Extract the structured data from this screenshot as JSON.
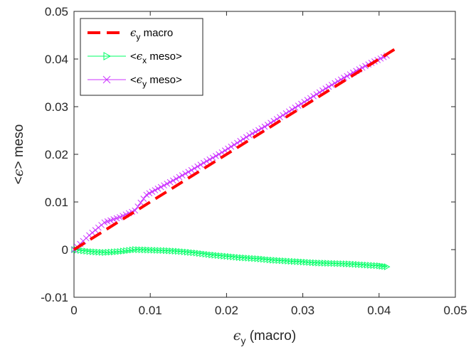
{
  "chart_data": {
    "type": "line",
    "xlabel": {
      "symbol": "ϵ",
      "sub": "y",
      "rest": " (macro)"
    },
    "ylabel": {
      "pre": "<",
      "symbol": "ϵ",
      "post": "> meso"
    },
    "xlim": [
      0,
      0.05
    ],
    "ylim": [
      -0.01,
      0.05
    ],
    "xticks": [
      "0",
      "0.01",
      "0.02",
      "0.03",
      "0.04",
      "0.05"
    ],
    "yticks": [
      "-0.01",
      "0",
      "0.01",
      "0.02",
      "0.03",
      "0.04",
      "0.05"
    ],
    "grid": false,
    "legend_position": "top-left",
    "series": [
      {
        "legend": {
          "pre": "",
          "symbol": "ϵ",
          "sub": "y",
          "rest": " macro"
        },
        "color": "#ff0000",
        "style": "dashed",
        "marker": "none",
        "x": [
          0,
          0.0425
        ],
        "y": [
          0,
          0.0425
        ]
      },
      {
        "legend": {
          "pre": "<",
          "symbol": "ϵ",
          "sub": "x",
          "rest": " meso>"
        },
        "color": "#00ff66",
        "style": "solid",
        "marker": "triangle-right",
        "x": [
          0,
          0.002,
          0.004,
          0.006,
          0.008,
          0.01,
          0.012,
          0.014,
          0.016,
          0.018,
          0.02,
          0.022,
          0.024,
          0.026,
          0.028,
          0.03,
          0.032,
          0.034,
          0.036,
          0.038,
          0.04,
          0.041
        ],
        "y": [
          0,
          -0.0004,
          -0.0006,
          -0.0004,
          0.0,
          -0.0001,
          -0.0002,
          -0.0004,
          -0.0007,
          -0.0011,
          -0.0014,
          -0.0017,
          -0.0019,
          -0.0022,
          -0.0024,
          -0.0026,
          -0.0028,
          -0.0029,
          -0.003,
          -0.0032,
          -0.0034,
          -0.0036
        ]
      },
      {
        "legend": {
          "pre": "<",
          "symbol": "ϵ",
          "sub": "y",
          "rest": " meso>"
        },
        "color": "#cc33ff",
        "style": "solid",
        "marker": "x",
        "x": [
          0,
          0.002,
          0.004,
          0.006,
          0.008,
          0.0095,
          0.011,
          0.013,
          0.015,
          0.017,
          0.019,
          0.021,
          0.023,
          0.025,
          0.027,
          0.029,
          0.031,
          0.033,
          0.035,
          0.037,
          0.039,
          0.041
        ],
        "y": [
          0,
          0.003,
          0.0057,
          0.0068,
          0.0082,
          0.0115,
          0.0128,
          0.0145,
          0.0163,
          0.0182,
          0.02,
          0.022,
          0.024,
          0.0258,
          0.0278,
          0.0298,
          0.0318,
          0.0338,
          0.0357,
          0.0375,
          0.0392,
          0.0407
        ]
      }
    ]
  }
}
